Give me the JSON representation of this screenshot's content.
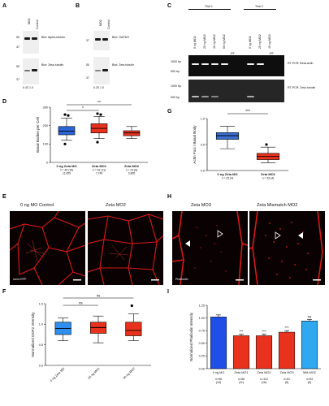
{
  "panelA": {
    "label": "A",
    "lanes": [
      "MO1",
      "Control"
    ],
    "markers": [
      "50",
      "37",
      "50",
      "37"
    ],
    "blot_top": "Blot: Alpha-tubulin",
    "blot_bottom": "Blot: Zeta-tubulin",
    "ratio": "0.43  1.0"
  },
  "panelB": {
    "label": "B",
    "lanes": [
      "MO2",
      "Control"
    ],
    "markers": [
      "37",
      "50",
      "37"
    ],
    "blot_top": "Blot: GAPDH",
    "blot_bottom": "Blot: Zeta tubulin",
    "ratio": "0.25  1.0"
  },
  "panelC": {
    "label": "C",
    "trial1": "Trial 1",
    "trial2": "Trial 2",
    "lanes": [
      "0 ng MO2",
      "20 ng MO2",
      "40 ng MO2",
      "60 ng MO2",
      "0 ng MO2",
      "20 ng MO2",
      "40 ng MO2"
    ],
    "rt_minus": "-RT",
    "bp_top": [
      "1000 bp",
      "500 bp"
    ],
    "bp_bottom": [
      "1000 bp",
      "500 bp"
    ],
    "label_top": "RT-PCR: Beta-actin",
    "label_bottom": "RT-PCR: Zeta-tubulin"
  },
  "panelD": {
    "label": "D",
    "chart_data": {
      "type": "box",
      "ylabel": "Basal Bodies per Cell",
      "ylim": [
        0,
        300
      ],
      "yticks": [
        "0",
        "100",
        "200",
        "300"
      ],
      "categories": [
        "0 ng Zeta MO",
        "Zeta MO1",
        "Zeta MO2"
      ],
      "sublabels": [
        "n = 45 (16)\n11,059",
        "n = 42 (11)\n7,749",
        "n = 24 (6)\n3,805"
      ],
      "series": [
        {
          "min": 120,
          "q1": 150,
          "median": 170,
          "q3": 195,
          "max": 240,
          "outliers": [
            100,
            255,
            260
          ]
        },
        {
          "min": 130,
          "q1": 160,
          "median": 185,
          "q3": 210,
          "max": 250,
          "outliers": [
            110,
            260,
            265
          ]
        },
        {
          "min": 130,
          "q1": 145,
          "median": 160,
          "q3": 172,
          "max": 195,
          "outliers": []
        }
      ],
      "significance": [
        "*",
        "**"
      ]
    }
  },
  "panelE": {
    "label": "E",
    "titles": [
      "0 ng MO Control",
      "Zeta MO2"
    ],
    "stain": "mem-RFP"
  },
  "panelF": {
    "label": "F",
    "chart_data": {
      "type": "box",
      "ylabel": "Normalized ODF2 Intensity",
      "ylim": [
        0,
        1.5
      ],
      "yticks": [
        "0.0",
        "0.5",
        "1.0",
        "1.5"
      ],
      "categories": [
        "0 ng Zeta MO",
        "20 ng MO1",
        "30 ng MO2"
      ],
      "series": [
        {
          "min": 0.6,
          "q1": 0.75,
          "median": 0.9,
          "q3": 1.05,
          "max": 1.15,
          "outliers": []
        },
        {
          "min": 0.55,
          "q1": 0.78,
          "median": 0.92,
          "q3": 1.05,
          "max": 1.2,
          "outliers": []
        },
        {
          "min": 0.6,
          "q1": 0.72,
          "median": 0.85,
          "q3": 1.05,
          "max": 1.25,
          "outliers": [
            1.45
          ]
        }
      ],
      "significance": [
        "ns",
        "ns"
      ]
    }
  },
  "panelG": {
    "label": "G",
    "chart_data": {
      "type": "box",
      "ylabel": "Actin Foci / Basal Body",
      "ylim": [
        0,
        1.0
      ],
      "yticks": [
        "0.0",
        "0.5",
        "1.0"
      ],
      "categories": [
        "0 ng Zeta MO",
        "Zeta MO1"
      ],
      "sublabels": [
        "n = 25 (4)",
        "n = 26 (4)"
      ],
      "series": [
        {
          "min": 0.42,
          "q1": 0.6,
          "median": 0.67,
          "q3": 0.73,
          "max": 0.85,
          "outliers": []
        },
        {
          "min": 0.15,
          "q1": 0.21,
          "median": 0.27,
          "q3": 0.33,
          "max": 0.45,
          "outliers": [
            0.5
          ]
        }
      ],
      "significance": [
        "***"
      ]
    }
  },
  "panelH": {
    "label": "H",
    "titles": [
      "Zeta MO3",
      "Zeta Mismatch MO2"
    ],
    "stain": "Phalloidin"
  },
  "panelI": {
    "label": "I",
    "chart_data": {
      "type": "bar",
      "ylabel": "Normalized Phalloidin Intensity",
      "ylim": [
        0,
        1.25
      ],
      "yticks": [
        "0.00",
        "0.25",
        "0.50",
        "0.75",
        "1.00",
        "1.25"
      ],
      "categories": [
        "0 ng MO",
        "Zeta MO1",
        "Zeta MO2",
        "Zeta MO3",
        "MM-MO2"
      ],
      "sublabels": [
        "n=96\n(15)",
        "n=58\n(11)",
        "n=112\n(16)",
        "n=51\n(8)",
        "n=54\n(6)"
      ],
      "values": [
        1.02,
        0.65,
        0.65,
        0.72,
        0.94
      ],
      "errors": [
        0.04,
        0.03,
        0.03,
        0.03,
        0.03
      ],
      "significance": [
        "",
        "***",
        "***",
        "***",
        "ns"
      ],
      "colors": [
        "#1f4fe6",
        "#e8321e",
        "#e8321e",
        "#e8321e",
        "#2fa8ef"
      ]
    }
  }
}
